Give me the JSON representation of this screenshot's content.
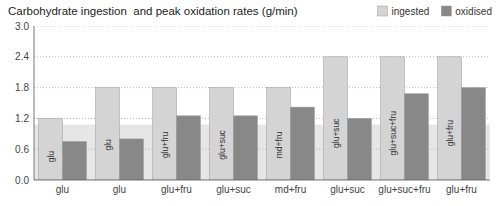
{
  "chart_data": {
    "type": "bar",
    "title": "Carbohydrate ingestion  and peak oxidation rates (g/min)",
    "categories": [
      "glu",
      "glu",
      "glu+fru",
      "glu+suc",
      "md+fru",
      "glu+suc",
      "glu+suc+fru",
      "glu+fru"
    ],
    "series": [
      {
        "name": "ingested",
        "color": "#d4d4d4",
        "values": [
          1.2,
          1.8,
          1.8,
          1.8,
          1.8,
          2.4,
          2.4,
          2.4
        ],
        "labels": [
          "glu",
          "glu",
          "glu+fru",
          "glu+suc",
          "md+fru",
          "glu+suc",
          "glu+suc+fru",
          "glu+fru"
        ]
      },
      {
        "name": "oxidised",
        "color": "#888888",
        "values": [
          0.75,
          0.8,
          1.25,
          1.25,
          1.42,
          1.2,
          1.68,
          1.8
        ]
      }
    ],
    "band": {
      "from": 0.0,
      "to": 1.08,
      "color": "#e6e6e6"
    },
    "ylim": [
      0.0,
      3.0
    ],
    "yticks": [
      {
        "value": 0.0,
        "label": "0.0"
      },
      0.6,
      1.2,
      1.8,
      2.4,
      {
        "value": 3.0,
        "label": "3.0"
      }
    ],
    "grid": true,
    "legend": "top-right"
  }
}
